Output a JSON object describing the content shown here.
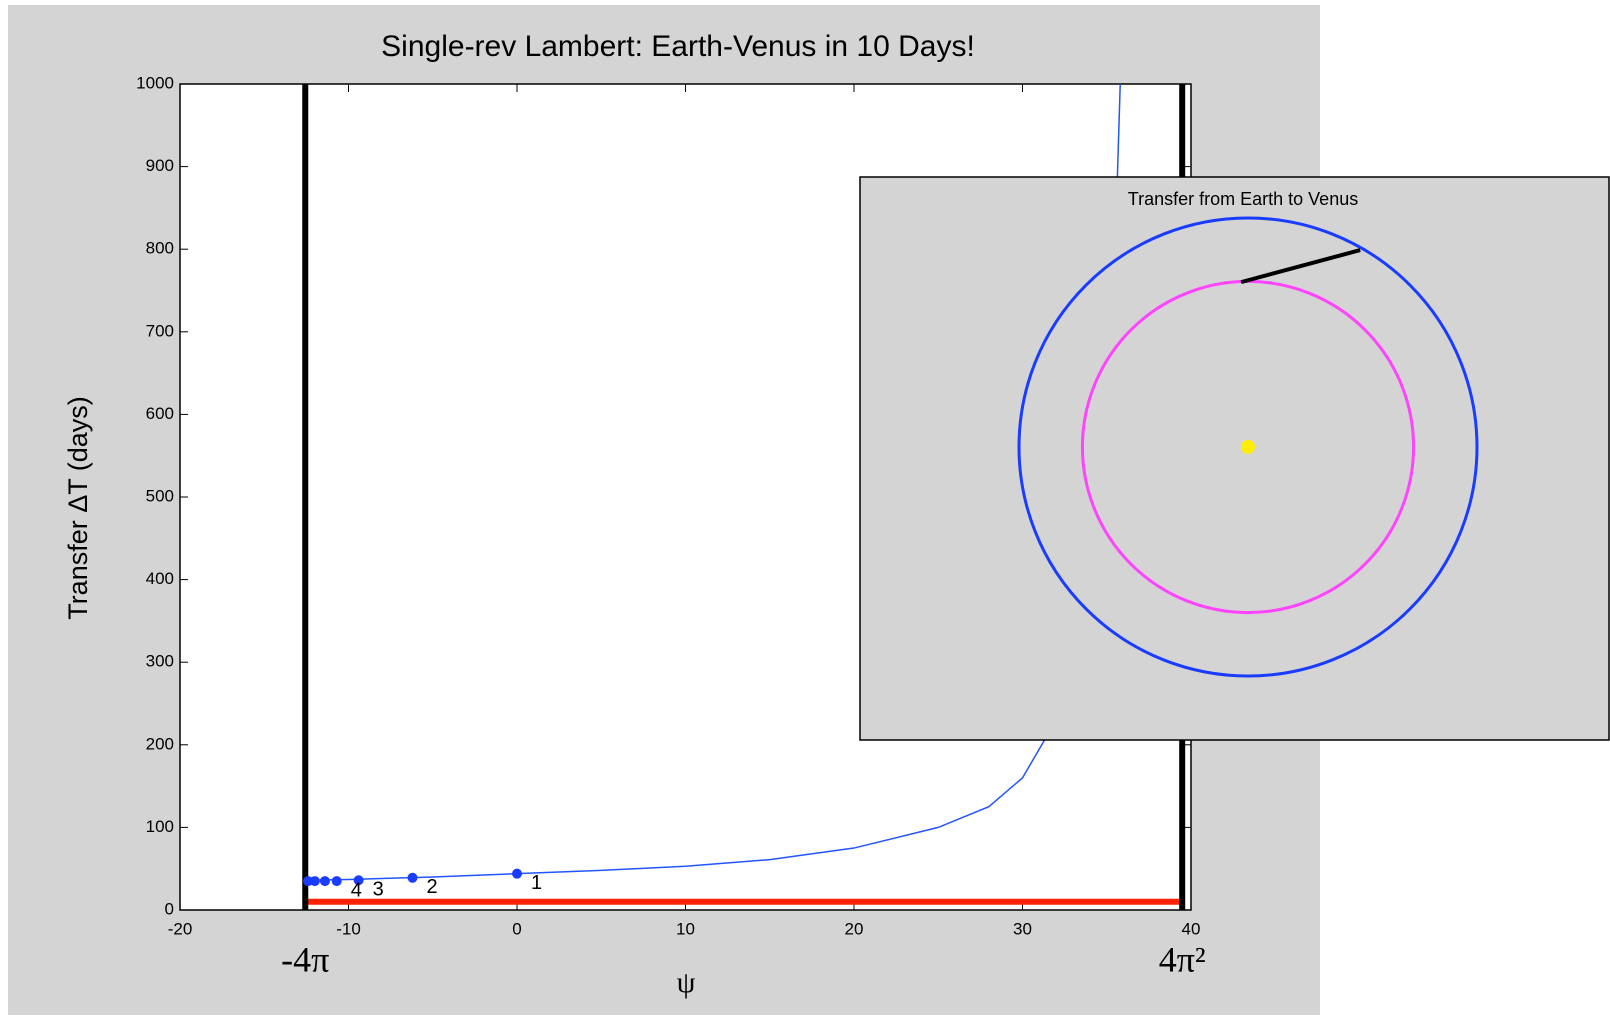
{
  "chart_data": [
    {
      "type": "line",
      "title": "Single-rev Lambert: Earth-Venus in 10 Days!",
      "xlabel": "ψ",
      "ylabel": "Transfer ΔT (days)",
      "xlim": [
        -20,
        40
      ],
      "ylim": [
        0,
        1000
      ],
      "xticks": [
        -20,
        -10,
        0,
        10,
        20,
        30,
        40
      ],
      "yticks": [
        0,
        100,
        200,
        300,
        400,
        500,
        600,
        700,
        800,
        900,
        1000
      ],
      "series": [
        {
          "color": "#2255ff",
          "x": [
            -12.5,
            -10,
            -5,
            0,
            5,
            10,
            15,
            20,
            25,
            28,
            30,
            32,
            33,
            34,
            35,
            35.5,
            35.8
          ],
          "values": [
            36,
            37,
            40,
            44,
            48,
            53,
            61,
            75,
            100,
            125,
            160,
            230,
            290,
            390,
            600,
            800,
            1000
          ]
        },
        {
          "color": "#1a3cff",
          "x": [
            0,
            -6.2,
            -9.4,
            -10.7,
            -11.4,
            -12.0,
            -12.4
          ],
          "values": [
            44,
            39,
            36,
            35,
            35,
            35,
            35
          ],
          "labels": [
            "1",
            "2",
            "3",
            "4",
            null,
            null,
            null
          ]
        }
      ],
      "vlines": [
        {
          "value": -12.566,
          "label": "-4π"
        },
        {
          "value": 39.478,
          "label": "4π²"
        }
      ],
      "hline": {
        "value": 10,
        "color": "#ff2200"
      }
    },
    {
      "type": "orbit",
      "title": "Transfer from Earth to Venus",
      "orbits": [
        {
          "radius": 1,
          "color": "#1a3cff"
        },
        {
          "radius": 0.723,
          "color": "#ff44ff"
        }
      ],
      "sun_color": "#ffee00",
      "transfer": {
        "x": [
          -0.03,
          0.49
        ],
        "y": [
          0.72,
          0.86
        ],
        "color": "#000000"
      }
    }
  ]
}
